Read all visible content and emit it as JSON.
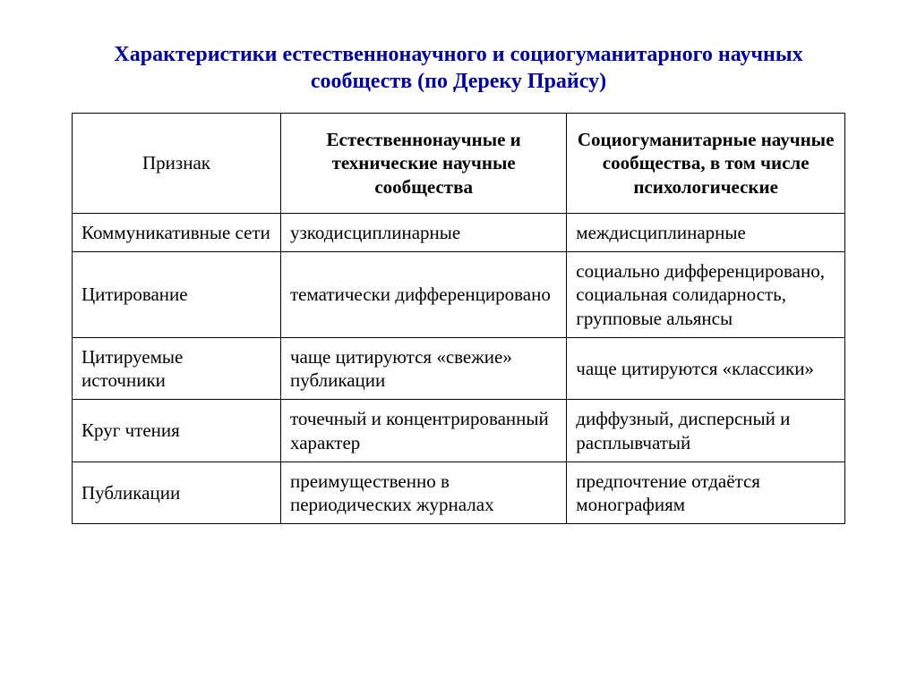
{
  "title": {
    "text": "Характеристики естественнонаучного и социогуманитарного научных сообществ (по Дереку Прайсу)",
    "color": "#000099"
  },
  "table": {
    "border_color": "#000000",
    "background_color": "#ffffff",
    "header_font_weight": "bold",
    "columns": [
      {
        "label": "Признак",
        "header_weight": "normal"
      },
      {
        "label": "Естественнонаучные и технические научные сообщества",
        "header_weight": "bold"
      },
      {
        "label": "Социогуманитарные научные сообщества, в том числе психологические",
        "header_weight": "bold"
      }
    ],
    "rows": [
      {
        "attr": "Коммуникативные сети",
        "c1": "узкодисциплинарные",
        "c2": "междисциплинарные"
      },
      {
        "attr": "Цитирование",
        "c1": "тематически дифференцировано",
        "c2": "социально дифференцировано, социальная солидарность, групповые альянсы"
      },
      {
        "attr": "Цитируемые источники",
        "c1": "чаще цитируются «свежие» публикации",
        "c2": "чаще цитируются «классики»"
      },
      {
        "attr": "Круг чтения",
        "c1": "точечный и концентрированный характер",
        "c2": "диффузный, дисперсный и расплывчатый"
      },
      {
        "attr": "Публикации",
        "c1": "преимущественно в периодических журналах",
        "c2": "предпочтение отдаётся монографиям"
      }
    ]
  }
}
